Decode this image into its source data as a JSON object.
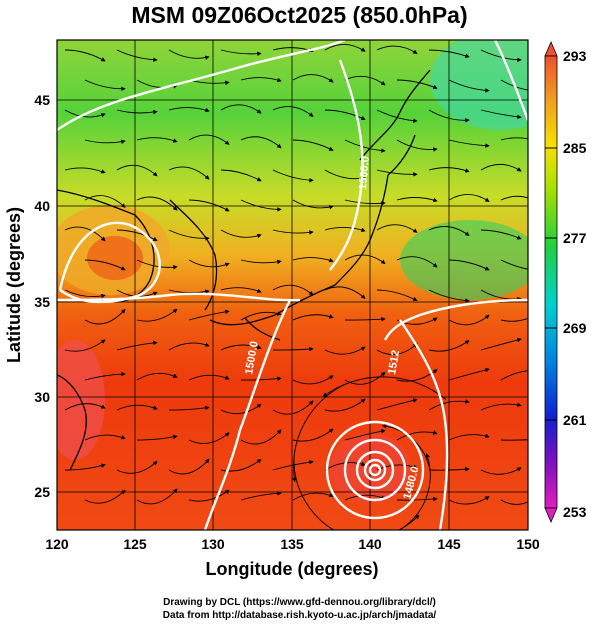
{
  "title": "MSM 09Z06Oct2025 (850.0hPa)",
  "axes": {
    "xlabel": "Longitude (degrees)",
    "ylabel": "Latitude  (degrees)",
    "xticks": [
      "120",
      "125",
      "130",
      "135",
      "140",
      "145",
      "150"
    ],
    "yticks": [
      "25",
      "30",
      "35",
      "40",
      "45"
    ],
    "xrange": [
      120,
      150
    ],
    "yrange": [
      22.4,
      47.6
    ]
  },
  "colorbar": {
    "ticks": [
      "293",
      "285",
      "277",
      "269",
      "261",
      "253"
    ],
    "range": [
      253,
      293
    ]
  },
  "contour_labels": [
    "1500.0",
    "1500.0",
    "1512",
    "1512",
    "1480.0"
  ],
  "credits": {
    "line1": "Drawing by DCL (https://www.gfd-dennou.org/library/dcl/)",
    "line2": "Data from http://database.rish.kyoto-u.ac.jp/arch/jmadata/"
  },
  "colors": {
    "warm": "#e8320a",
    "mid": "#f4c200",
    "cool": "#3ccc3c",
    "cyan": "#00d8e0"
  }
}
